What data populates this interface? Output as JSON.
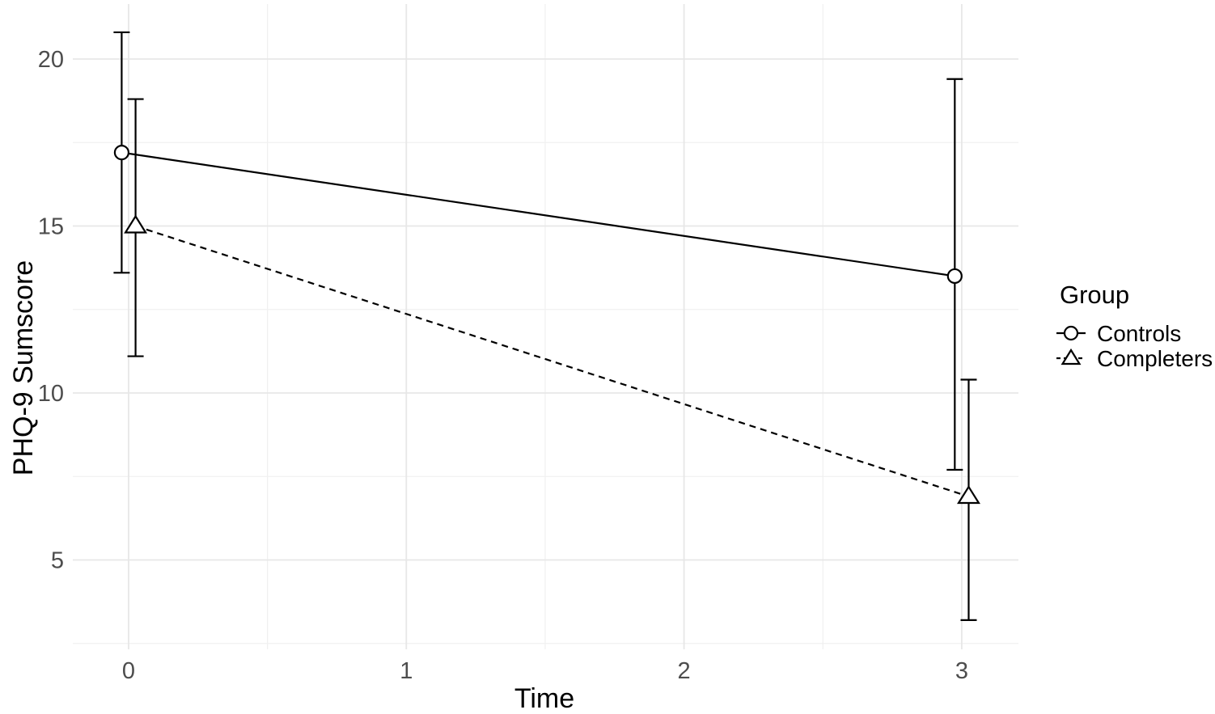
{
  "chart_data": {
    "type": "line",
    "title": "",
    "xlabel": "Time",
    "ylabel": "PHQ-9 Sumscore",
    "x_ticks": [
      0,
      1,
      2,
      3
    ],
    "x_minor_ticks": [
      0.5,
      1.5,
      2.5
    ],
    "y_ticks": [
      5,
      10,
      15,
      20
    ],
    "y_minor_ticks": [
      2.5,
      7.5,
      12.5,
      17.5
    ],
    "xlim": [
      -0.2,
      3.2
    ],
    "ylim": [
      2.3,
      21.7
    ],
    "grid": "on",
    "dodge": 0.025,
    "legend": {
      "title": "Group",
      "position": "right",
      "entries": [
        "Controls",
        "Completers"
      ]
    },
    "series": [
      {
        "name": "Controls",
        "marker": "circle",
        "line_style": "solid",
        "x": [
          0,
          3
        ],
        "means": [
          17.2,
          13.5
        ],
        "ci_lower": [
          13.6,
          7.7
        ],
        "ci_upper": [
          20.8,
          19.4
        ]
      },
      {
        "name": "Completers",
        "marker": "triangle",
        "line_style": "dashed",
        "x": [
          0,
          3
        ],
        "means": [
          15.0,
          6.9
        ],
        "ci_lower": [
          11.1,
          3.2
        ],
        "ci_upper": [
          18.8,
          10.4
        ]
      }
    ],
    "colors": {
      "line": "#000000",
      "marker_fill": "#ffffff",
      "grid_major": "#e7e7e7",
      "grid_minor": "#f0f0f0",
      "tick_label": "#4d4d4d",
      "axis_title": "#000000",
      "background": "#ffffff"
    }
  }
}
